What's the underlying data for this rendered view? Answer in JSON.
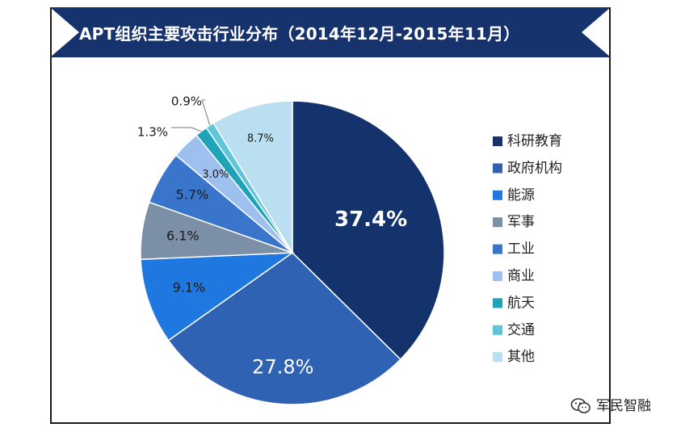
{
  "chart_data": {
    "type": "pie",
    "title": "APT组织主要攻击行业分布（2014年12月-2015年11月）",
    "legend_position": "right",
    "slices": [
      {
        "label": "科研教育",
        "value": 37.4,
        "display": "37.4%",
        "color": "#14326b"
      },
      {
        "label": "政府机构",
        "value": 27.8,
        "display": "27.8%",
        "color": "#2f62b3"
      },
      {
        "label": "能源",
        "value": 9.1,
        "display": "9.1%",
        "color": "#1e78e0"
      },
      {
        "label": "军事",
        "value": 6.1,
        "display": "6.1%",
        "color": "#7b8fa6"
      },
      {
        "label": "工业",
        "value": 5.7,
        "display": "5.7%",
        "color": "#3a75cc"
      },
      {
        "label": "商业",
        "value": 3.0,
        "display": "3.0%",
        "color": "#9ec0ef"
      },
      {
        "label": "航天",
        "value": 1.3,
        "display": "1.3%",
        "color": "#1fa3b8"
      },
      {
        "label": "交通",
        "value": 0.9,
        "display": "0.9%",
        "color": "#5ec6d8"
      },
      {
        "label": "其他",
        "value": 8.7,
        "display": "8.7%",
        "color": "#b9dff0"
      }
    ]
  },
  "watermark": {
    "text": "军民智融",
    "icon": "wechat-icon"
  }
}
